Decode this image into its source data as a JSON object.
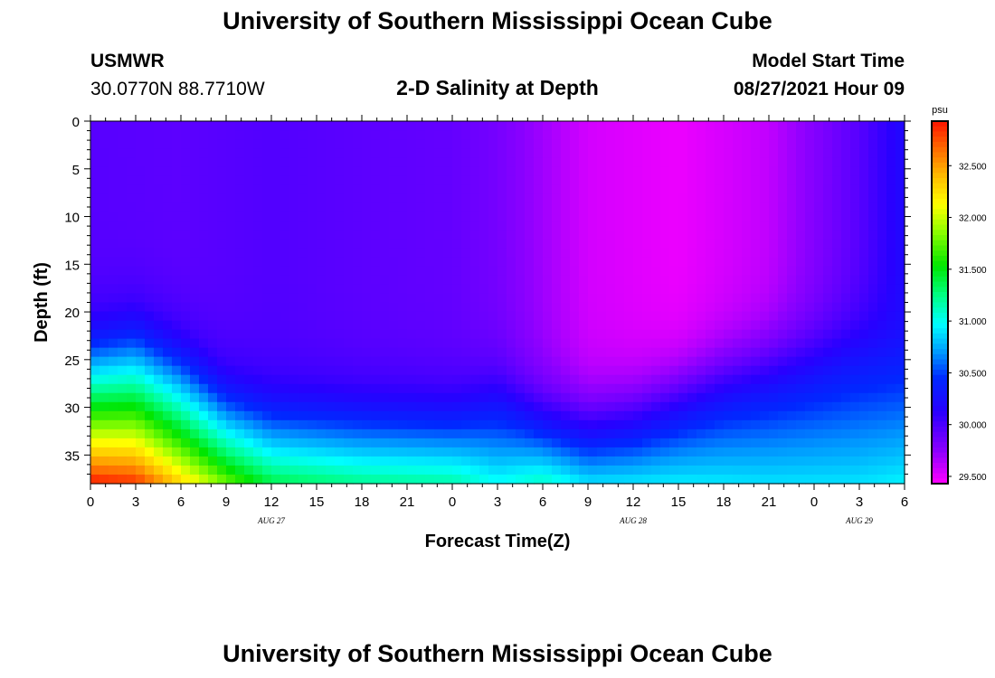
{
  "header": {
    "title": "University of Southern Mississippi Ocean Cube",
    "station": "USMWR",
    "coords": "30.0770N  88.7710W",
    "plot_title": "2-D Salinity at Depth",
    "model_start_label": "Model Start Time",
    "model_start_value": "08/27/2021 Hour 09"
  },
  "footer": {
    "title": "University of Southern Mississippi Ocean Cube"
  },
  "colorbar": {
    "unit": "psu",
    "ticks": [
      "29.500",
      "30.000",
      "30.500",
      "31.000",
      "31.500",
      "32.000",
      "32.500"
    ],
    "range": [
      29.43,
      32.93
    ]
  },
  "chart_data": {
    "type": "heatmap",
    "title": "2-D Salinity at Depth",
    "xlabel": "Forecast Time(Z)",
    "ylabel": "Depth (ft)",
    "x_tick_labels": [
      "0",
      "3",
      "6",
      "9",
      "12",
      "15",
      "18",
      "21",
      "0",
      "3",
      "6",
      "9",
      "12",
      "15",
      "18",
      "21",
      "0",
      "3",
      "6"
    ],
    "x_day_labels": [
      {
        "label": "AUG 27",
        "tick_index": 4
      },
      {
        "label": "AUG 28",
        "tick_index": 12
      },
      {
        "label": "AUG 29",
        "tick_index": 17
      }
    ],
    "x_range_hours": [
      0,
      54
    ],
    "y_ticks": [
      0,
      5,
      10,
      15,
      20,
      25,
      30,
      35
    ],
    "ylim": [
      0,
      38
    ],
    "y_inverted": true,
    "value_unit": "psu",
    "vrange": [
      29.43,
      32.93
    ],
    "surface_salinity": [
      [
        0,
        29.95
      ],
      [
        6,
        29.93
      ],
      [
        12,
        29.97
      ],
      [
        18,
        29.93
      ],
      [
        24,
        29.9
      ],
      [
        27,
        29.83
      ],
      [
        33,
        29.55
      ],
      [
        39,
        29.48
      ],
      [
        45,
        29.6
      ],
      [
        51,
        29.95
      ],
      [
        54,
        30.2
      ]
    ],
    "halocline_depth_ft": [
      [
        0,
        21
      ],
      [
        3,
        20
      ],
      [
        6,
        22.5
      ],
      [
        9,
        26.5
      ],
      [
        12,
        28
      ],
      [
        18,
        28.5
      ],
      [
        24,
        28.7
      ],
      [
        27,
        27.3
      ],
      [
        30,
        29.5
      ],
      [
        33,
        30.5
      ],
      [
        36,
        29.7
      ],
      [
        42,
        26
      ],
      [
        48,
        23.5
      ],
      [
        51,
        22
      ],
      [
        54,
        21.5
      ]
    ],
    "bottom_salinity": [
      [
        0,
        32.93
      ],
      [
        3,
        32.85
      ],
      [
        6,
        32.3
      ],
      [
        9,
        31.8
      ],
      [
        12,
        31.4
      ],
      [
        18,
        31.25
      ],
      [
        24,
        31.2
      ],
      [
        27,
        31.0
      ],
      [
        30,
        31.15
      ],
      [
        33,
        30.95
      ],
      [
        39,
        30.95
      ],
      [
        45,
        30.9
      ],
      [
        51,
        30.9
      ],
      [
        54,
        30.95
      ]
    ]
  }
}
